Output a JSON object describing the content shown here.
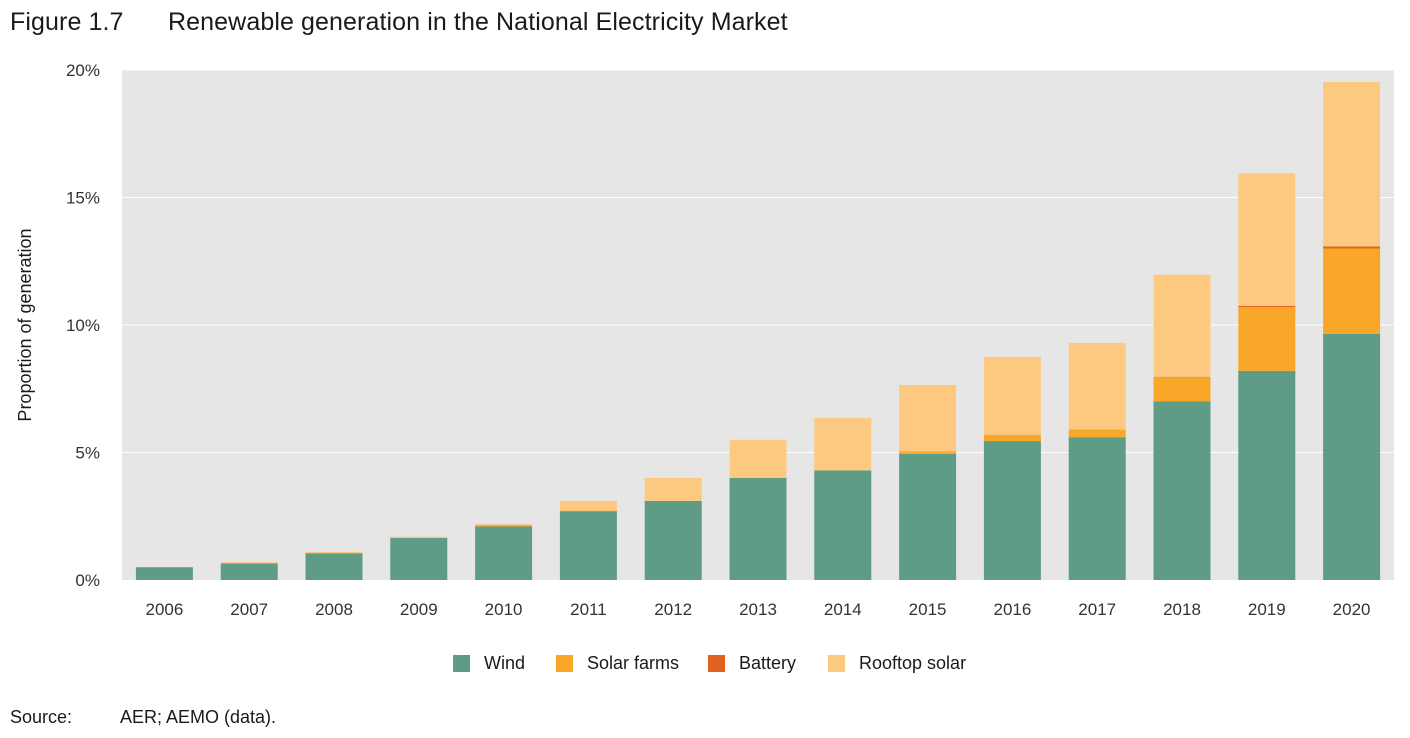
{
  "figure": {
    "number": "Figure 1.7",
    "title": "Renewable generation in the National Electricity Market"
  },
  "source": {
    "label": "Source:",
    "text": "AER; AEMO (data)."
  },
  "chart_data": {
    "type": "bar",
    "stacked": true,
    "title": "Renewable generation in the National Electricity Market",
    "xlabel": "",
    "ylabel": "Proportion of generation",
    "ylim": [
      0,
      20
    ],
    "yticks": [
      0,
      5,
      10,
      15,
      20
    ],
    "ytick_labels": [
      "0%",
      "5%",
      "10%",
      "15%",
      "20%"
    ],
    "grid": true,
    "background": "#e6e6e6",
    "legend_position": "bottom",
    "categories": [
      "2006",
      "2007",
      "2008",
      "2009",
      "2010",
      "2011",
      "2012",
      "2013",
      "2014",
      "2015",
      "2016",
      "2017",
      "2018",
      "2019",
      "2020"
    ],
    "series": [
      {
        "name": "Wind",
        "color": "#5e9c86",
        "values": [
          0.5,
          0.65,
          1.05,
          1.65,
          2.1,
          2.7,
          3.1,
          4.0,
          4.3,
          4.95,
          5.45,
          5.6,
          7.0,
          8.2,
          9.65
        ]
      },
      {
        "name": "Solar farms",
        "color": "#f9a729",
        "values": [
          0,
          0,
          0,
          0,
          0.05,
          0.02,
          0,
          0,
          0,
          0.1,
          0.25,
          0.3,
          0.95,
          2.5,
          3.35
        ]
      },
      {
        "name": "Battery",
        "color": "#e0621e",
        "values": [
          0,
          0,
          0,
          0,
          0,
          0,
          0,
          0,
          0,
          0,
          0,
          0,
          0.02,
          0.05,
          0.08
        ]
      },
      {
        "name": "Rooftop solar",
        "color": "#fdc981",
        "values": [
          0,
          0.05,
          0.05,
          0.05,
          0.05,
          0.38,
          0.9,
          1.5,
          2.05,
          2.6,
          3.05,
          3.4,
          4.0,
          5.2,
          6.45
        ]
      }
    ]
  }
}
